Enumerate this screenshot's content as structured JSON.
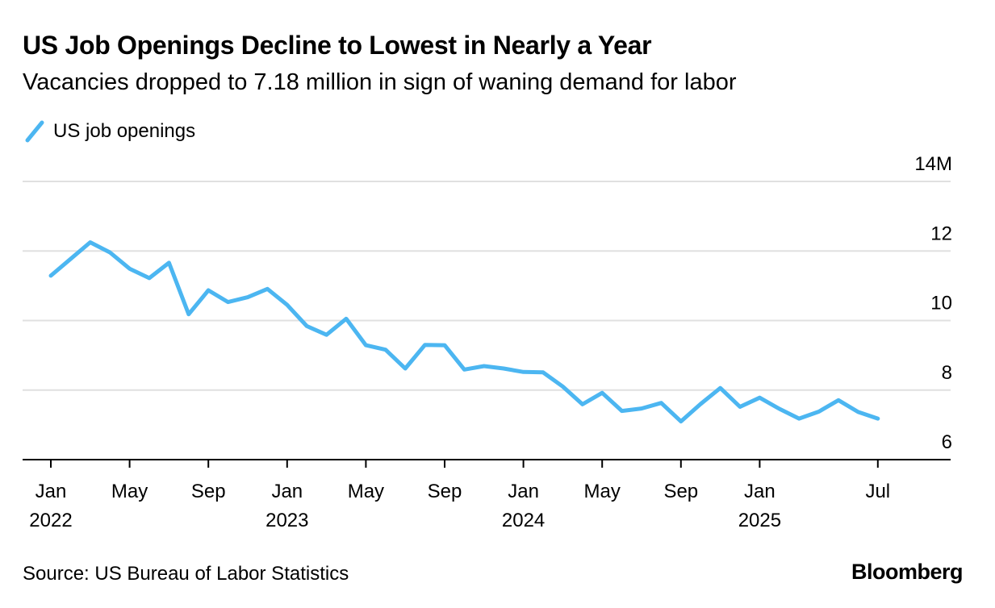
{
  "title": "US Job Openings Decline to Lowest in Nearly a Year",
  "subtitle": "Vacancies dropped to 7.18 million in sign of waning demand for labor",
  "legend": {
    "label": "US job openings",
    "color": "#4CB6F1"
  },
  "source": "Source: US Bureau of Labor Statistics",
  "brand": "Bloomberg",
  "chart_data": {
    "type": "line",
    "x_start": "2022-01",
    "frequency": "monthly",
    "series": [
      {
        "name": "US job openings",
        "color": "#4CB6F1",
        "values": [
          11.29,
          11.77,
          12.25,
          11.96,
          11.49,
          11.22,
          11.66,
          10.18,
          10.87,
          10.53,
          10.67,
          10.91,
          10.45,
          9.84,
          9.59,
          10.05,
          9.29,
          9.16,
          8.62,
          9.3,
          9.29,
          8.59,
          8.69,
          8.62,
          8.52,
          8.51,
          8.1,
          7.59,
          7.92,
          7.4,
          7.47,
          7.63,
          7.1,
          7.6,
          8.06,
          7.52,
          7.78,
          7.46,
          7.18,
          7.38,
          7.71,
          7.37,
          7.18
        ]
      }
    ],
    "x_ticks": [
      {
        "month": 0,
        "label": "Jan",
        "sublabel": "2022"
      },
      {
        "month": 4,
        "label": "May"
      },
      {
        "month": 8,
        "label": "Sep"
      },
      {
        "month": 12,
        "label": "Jan",
        "sublabel": "2023"
      },
      {
        "month": 16,
        "label": "May"
      },
      {
        "month": 20,
        "label": "Sep"
      },
      {
        "month": 24,
        "label": "Jan",
        "sublabel": "2024"
      },
      {
        "month": 28,
        "label": "May"
      },
      {
        "month": 32,
        "label": "Sep"
      },
      {
        "month": 36,
        "label": "Jan",
        "sublabel": "2025"
      },
      {
        "month": 42,
        "label": "Jul"
      }
    ],
    "y_ticks": [
      {
        "value": 6,
        "label": "6"
      },
      {
        "value": 8,
        "label": "8"
      },
      {
        "value": 10,
        "label": "10"
      },
      {
        "value": 12,
        "label": "12"
      },
      {
        "value": 14,
        "label": "14M"
      }
    ],
    "ylim": [
      6,
      14
    ],
    "grid": true,
    "gridline_color": "#E0E0E0",
    "y_axis_side": "right",
    "legend_position": "top-left"
  }
}
